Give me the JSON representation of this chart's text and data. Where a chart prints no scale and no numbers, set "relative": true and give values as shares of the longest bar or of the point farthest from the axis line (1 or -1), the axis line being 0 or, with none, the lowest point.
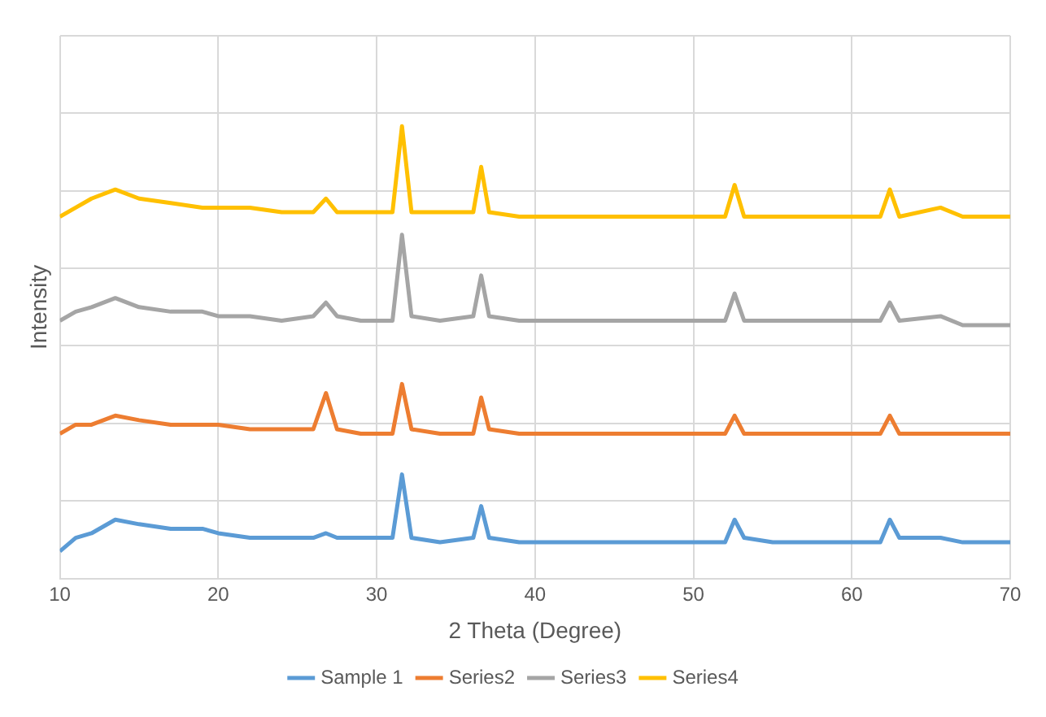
{
  "chart_data": {
    "type": "line",
    "xlabel": "2 Theta (Degree)",
    "ylabel": "Intensity",
    "relative": true,
    "x": [
      10,
      11,
      12,
      13.5,
      15,
      17,
      19,
      20,
      22,
      24,
      26,
      26.8,
      27.5,
      29,
      31,
      31.6,
      32.2,
      34,
      36.1,
      36.6,
      37.1,
      39,
      42,
      45,
      48,
      50,
      52,
      52.6,
      53.2,
      55,
      58,
      61.8,
      62.4,
      63,
      65.6,
      67,
      70
    ],
    "xlim": [
      10,
      70
    ],
    "xticks": [
      10,
      20,
      30,
      40,
      50,
      60,
      70
    ],
    "grid": true,
    "legend": "bottom",
    "marker": "none",
    "line_style": "solid",
    "series": [
      {
        "name": "Sample 1",
        "color": "#5b9bd5",
        "values": [
          0.06,
          0.09,
          0.1,
          0.13,
          0.12,
          0.11,
          0.11,
          0.1,
          0.09,
          0.09,
          0.09,
          0.1,
          0.09,
          0.09,
          0.09,
          0.23,
          0.09,
          0.08,
          0.09,
          0.16,
          0.09,
          0.08,
          0.08,
          0.08,
          0.08,
          0.08,
          0.08,
          0.13,
          0.09,
          0.08,
          0.08,
          0.08,
          0.13,
          0.09,
          0.09,
          0.08,
          0.08
        ]
      },
      {
        "name": "Series2",
        "color": "#ed7d31",
        "values": [
          0.32,
          0.34,
          0.34,
          0.36,
          0.35,
          0.34,
          0.34,
          0.34,
          0.33,
          0.33,
          0.33,
          0.41,
          0.33,
          0.32,
          0.32,
          0.43,
          0.33,
          0.32,
          0.32,
          0.4,
          0.33,
          0.32,
          0.32,
          0.32,
          0.32,
          0.32,
          0.32,
          0.36,
          0.32,
          0.32,
          0.32,
          0.32,
          0.36,
          0.32,
          0.32,
          0.32,
          0.32
        ]
      },
      {
        "name": "Series3",
        "color": "#a5a5a5",
        "values": [
          0.57,
          0.59,
          0.6,
          0.62,
          0.6,
          0.59,
          0.59,
          0.58,
          0.58,
          0.57,
          0.58,
          0.61,
          0.58,
          0.57,
          0.57,
          0.76,
          0.58,
          0.57,
          0.58,
          0.67,
          0.58,
          0.57,
          0.57,
          0.57,
          0.57,
          0.57,
          0.57,
          0.63,
          0.57,
          0.57,
          0.57,
          0.57,
          0.61,
          0.57,
          0.58,
          0.56,
          0.56
        ]
      },
      {
        "name": "Series4",
        "color": "#ffc000",
        "values": [
          0.8,
          0.82,
          0.84,
          0.86,
          0.84,
          0.83,
          0.82,
          0.82,
          0.82,
          0.81,
          0.81,
          0.84,
          0.81,
          0.81,
          0.81,
          1.0,
          0.81,
          0.81,
          0.81,
          0.91,
          0.81,
          0.8,
          0.8,
          0.8,
          0.8,
          0.8,
          0.8,
          0.87,
          0.8,
          0.8,
          0.8,
          0.8,
          0.86,
          0.8,
          0.82,
          0.8,
          0.8
        ]
      }
    ]
  }
}
